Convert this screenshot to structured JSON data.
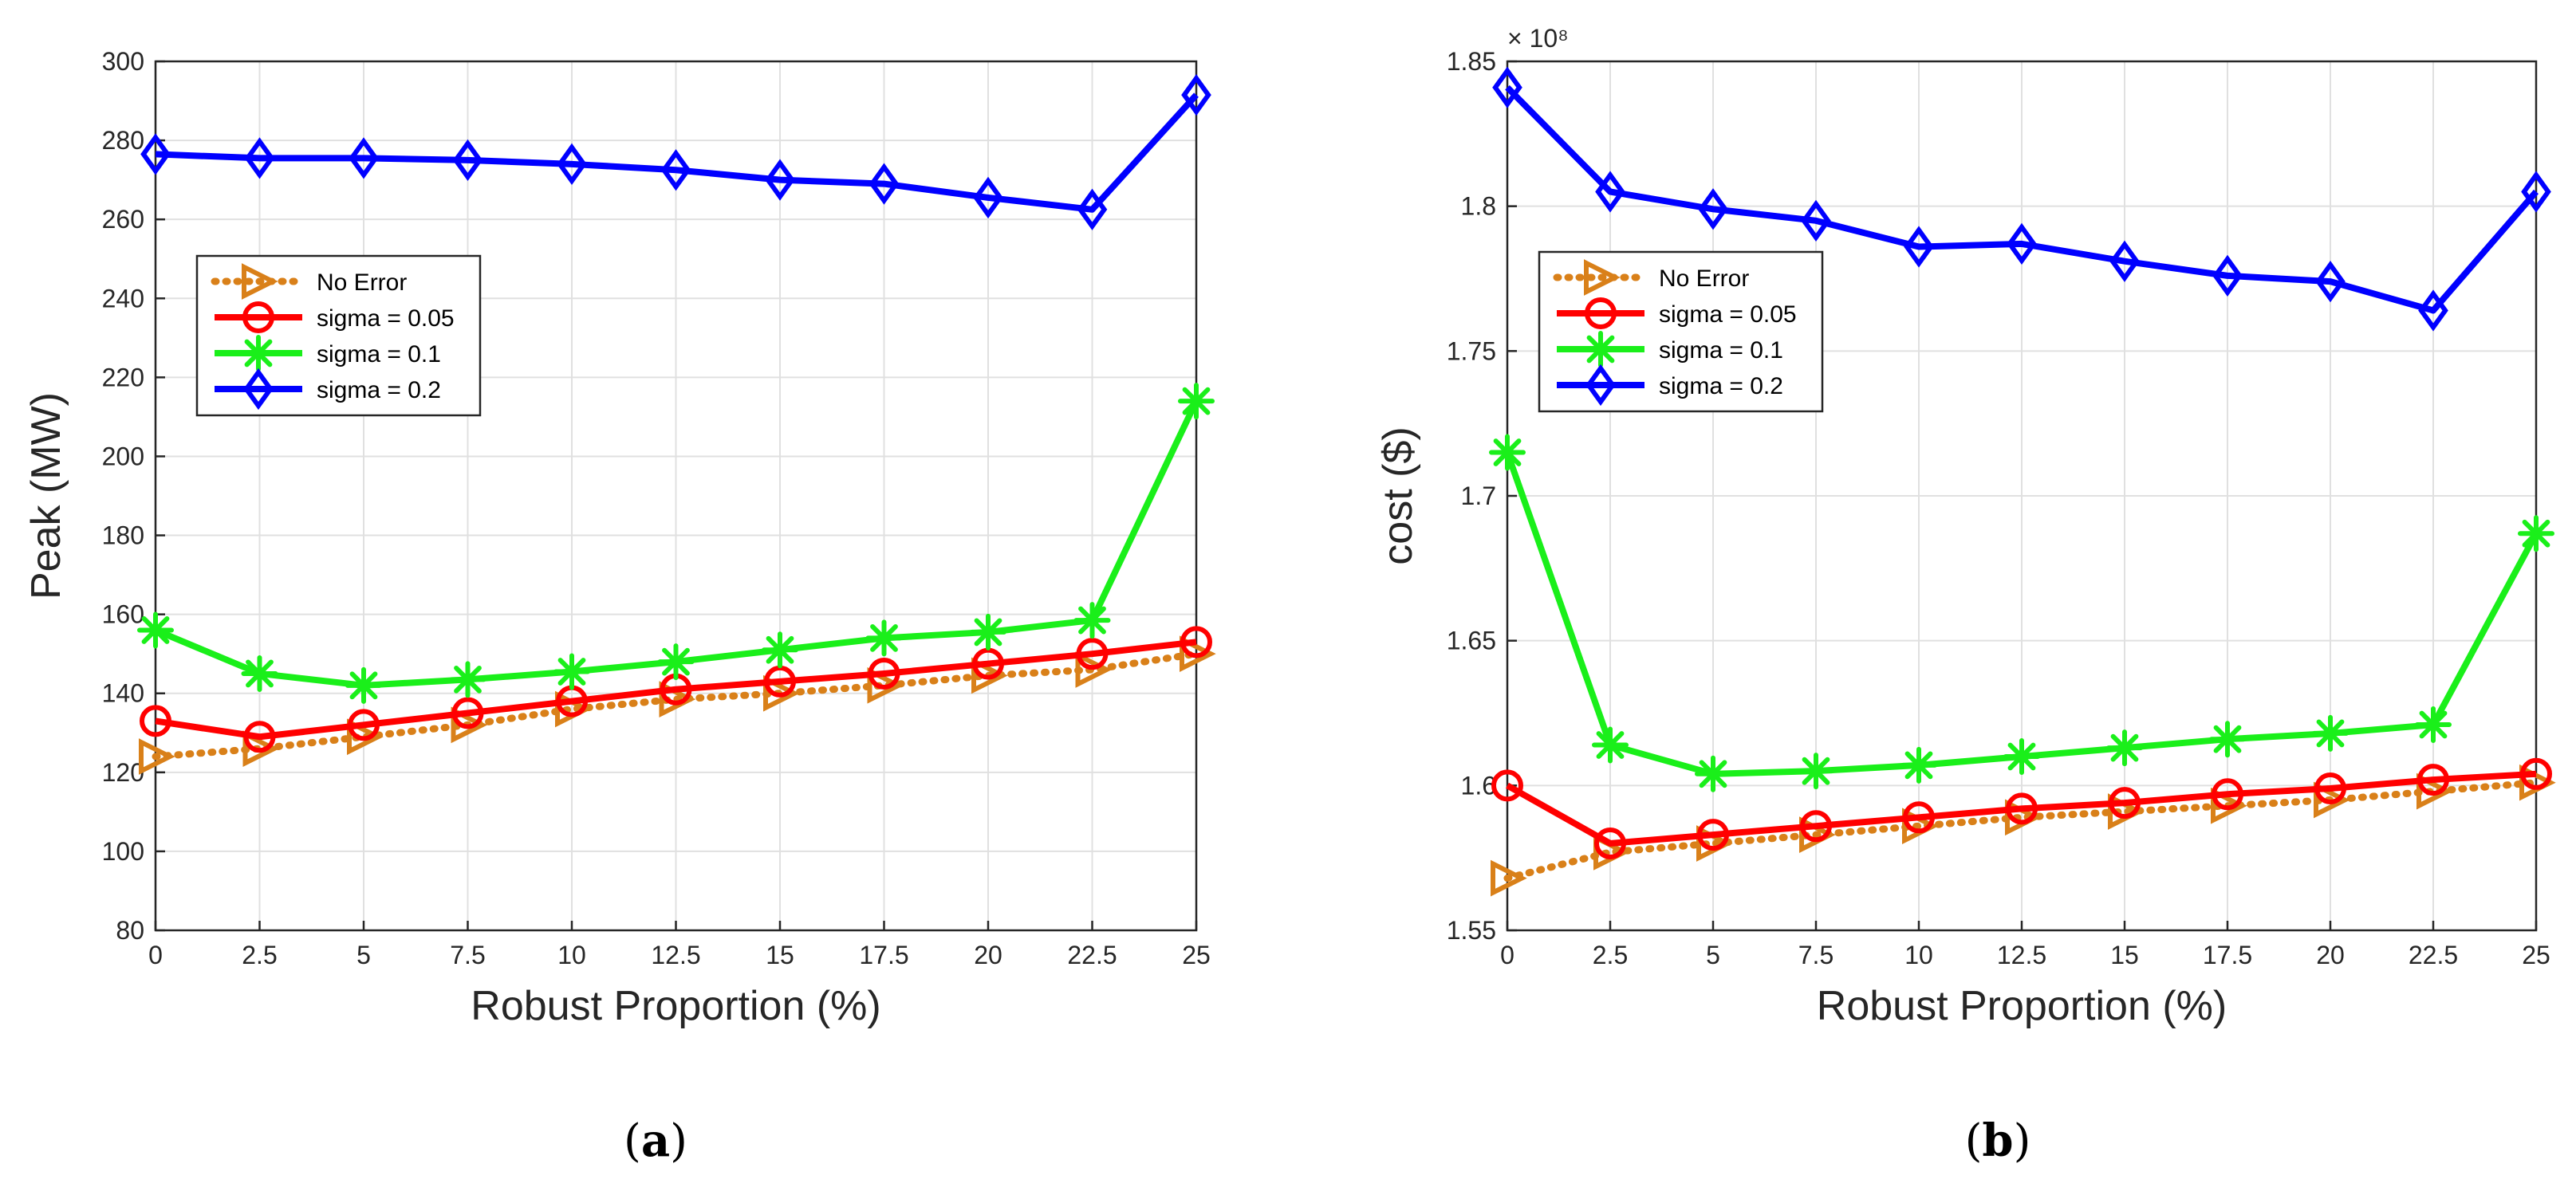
{
  "chart_data": [
    {
      "type": "line",
      "caption_open": "(",
      "caption_letter": "a",
      "caption_close": ")",
      "title": "",
      "xlabel": "Robust Proportion (%)",
      "ylabel": "Peak (MW)",
      "x": [
        0,
        2.5,
        5,
        7.5,
        10,
        12.5,
        15,
        17.5,
        20,
        22.5,
        25
      ],
      "xticklabels": [
        "0",
        "2.5",
        "5",
        "7.5",
        "10",
        "12.5",
        "15",
        "17.5",
        "20",
        "22.5",
        "25"
      ],
      "xlim": [
        0,
        25
      ],
      "ylim": [
        80,
        300
      ],
      "yticks": [
        80,
        100,
        120,
        140,
        160,
        180,
        200,
        220,
        240,
        260,
        280,
        300
      ],
      "yticklabels": [
        "80",
        "100",
        "120",
        "140",
        "160",
        "180",
        "200",
        "220",
        "240",
        "260",
        "280",
        "300"
      ],
      "exponent_label": "",
      "grid": true,
      "legend_position": "upper-left",
      "series": [
        {
          "name": "No Error",
          "color": "#d98019",
          "style": "dotted",
          "marker": "triangle-right",
          "values": [
            124,
            126,
            129,
            132,
            136,
            138.5,
            140,
            142,
            144.5,
            146,
            150
          ]
        },
        {
          "name": "sigma = 0.05",
          "color": "#ff0000",
          "style": "solid",
          "marker": "circle",
          "values": [
            133,
            129,
            132,
            135,
            138,
            141,
            143,
            145,
            147.5,
            150,
            153
          ]
        },
        {
          "name": "sigma = 0.1",
          "color": "#1aef1a",
          "style": "solid",
          "marker": "asterisk",
          "values": [
            156,
            145,
            142,
            143.5,
            145.5,
            148,
            151,
            154,
            155.5,
            158.5,
            214
          ]
        },
        {
          "name": "sigma = 0.2",
          "color": "#0000ff",
          "style": "solid",
          "marker": "diamond",
          "values": [
            276.5,
            275.5,
            275.5,
            275,
            274,
            272.5,
            270,
            269,
            265.5,
            262.5,
            291.5
          ]
        }
      ]
    },
    {
      "type": "line",
      "caption_open": "(",
      "caption_letter": "b",
      "caption_close": ")",
      "title": "",
      "xlabel": "Robust Proportion (%)",
      "ylabel": "cost ($)",
      "x": [
        0,
        2.5,
        5,
        7.5,
        10,
        12.5,
        15,
        17.5,
        20,
        22.5,
        25
      ],
      "xticklabels": [
        "0",
        "2.5",
        "5",
        "7.5",
        "10",
        "12.5",
        "15",
        "17.5",
        "20",
        "22.5",
        "25"
      ],
      "xlim": [
        0,
        25
      ],
      "ylim": [
        1.55,
        1.85
      ],
      "yticks": [
        1.55,
        1.6,
        1.65,
        1.7,
        1.75,
        1.8,
        1.85
      ],
      "yticklabels": [
        "1.55",
        "1.6",
        "1.65",
        "1.7",
        "1.75",
        "1.8",
        "1.85"
      ],
      "exponent_label": "× 10⁸",
      "grid": true,
      "legend_position": "upper-left",
      "series": [
        {
          "name": "No Error",
          "color": "#d98019",
          "style": "dotted",
          "marker": "triangle-right",
          "values": [
            1.568,
            1.577,
            1.58,
            1.583,
            1.586,
            1.589,
            1.591,
            1.593,
            1.595,
            1.598,
            1.601
          ]
        },
        {
          "name": "sigma = 0.05",
          "color": "#ff0000",
          "style": "solid",
          "marker": "circle",
          "values": [
            1.6,
            1.58,
            1.583,
            1.586,
            1.589,
            1.592,
            1.594,
            1.597,
            1.599,
            1.602,
            1.604
          ]
        },
        {
          "name": "sigma = 0.1",
          "color": "#1aef1a",
          "style": "solid",
          "marker": "asterisk",
          "values": [
            1.715,
            1.614,
            1.604,
            1.605,
            1.607,
            1.61,
            1.613,
            1.616,
            1.618,
            1.621,
            1.687
          ]
        },
        {
          "name": "sigma = 0.2",
          "color": "#0000ff",
          "style": "solid",
          "marker": "diamond",
          "values": [
            1.841,
            1.805,
            1.799,
            1.795,
            1.786,
            1.787,
            1.781,
            1.776,
            1.774,
            1.764,
            1.805
          ]
        }
      ]
    }
  ]
}
